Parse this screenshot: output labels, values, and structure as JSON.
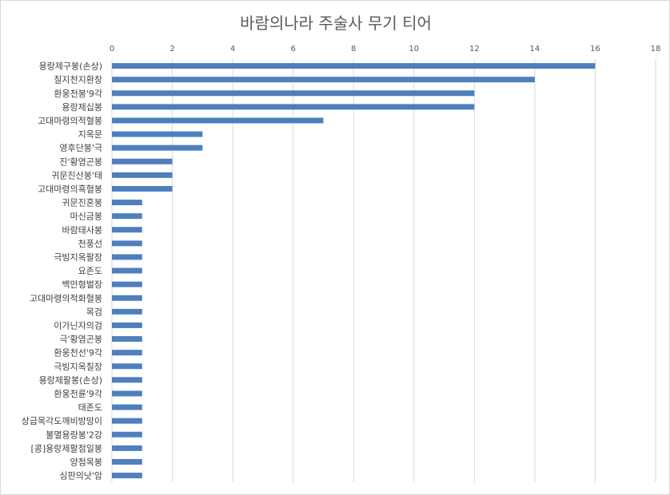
{
  "chart_data": {
    "type": "bar",
    "orientation": "horizontal",
    "title": "바람의나라 주술사 무기 티어",
    "xlim": [
      0,
      18
    ],
    "x_ticks": [
      0,
      2,
      4,
      6,
      8,
      10,
      12,
      14,
      16,
      18
    ],
    "x_axis_position": "top",
    "grid": true,
    "legend": "none",
    "bar_color": "#4f7fbc",
    "categories": [
      "용랑제구봉(손상)",
      "칠지천지환창",
      "환웅천봉'9각",
      "용랑제십봉",
      "고대마령의적혈봉",
      "지옥문",
      "영후단봉'극",
      "진'황염곤봉",
      "귀문진산봉'태",
      "고대마령의흑혈봉",
      "귀문진혼봉",
      "마신금봉",
      "바람태사봉",
      "천풍선",
      "극빙지옥팔장",
      "요존도",
      "백만형벌장",
      "고대마령의적화혈봉",
      "목검",
      "이가닌자의검",
      "극'황염곤봉",
      "환웅천선'9각",
      "극빙지옥칠장",
      "용랑제팔봉(손상)",
      "환웅천륜'9각",
      "태존도",
      "상급목각도깨비방망이",
      "불멸용랑봉'2강",
      "[콩]용랑제팔점일봉",
      "양첨목봉",
      "심판의낫'암"
    ],
    "values": [
      16,
      14,
      12,
      12,
      7,
      3,
      3,
      2,
      2,
      2,
      1,
      1,
      1,
      1,
      1,
      1,
      1,
      1,
      1,
      1,
      1,
      1,
      1,
      1,
      1,
      1,
      1,
      1,
      1,
      1,
      1
    ]
  }
}
